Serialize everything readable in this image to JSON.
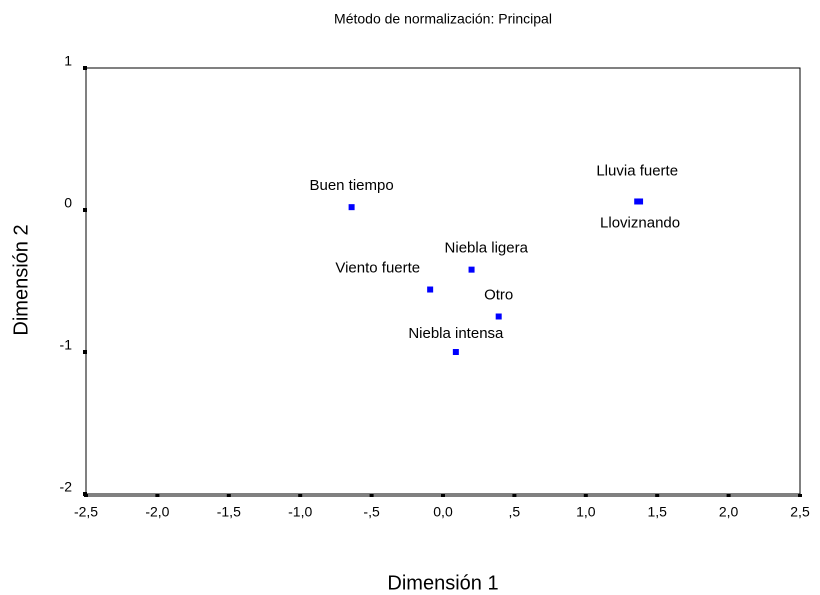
{
  "chart_data": {
    "type": "scatter",
    "title": "Método de normalización: Principal",
    "xlabel": "Dimensión 1",
    "ylabel": "Dimensión 2",
    "color": "#0000ff",
    "xlim": [
      -2.5,
      2.5
    ],
    "ylim": [
      -2,
      1
    ],
    "xticks": [
      {
        "value": -2.5,
        "label": "-2,5"
      },
      {
        "value": -2.0,
        "label": "-2,0"
      },
      {
        "value": -1.5,
        "label": "-1,5"
      },
      {
        "value": -1.0,
        "label": "-1,0"
      },
      {
        "value": -0.5,
        "label": "-,5"
      },
      {
        "value": 0.0,
        "label": "0,0"
      },
      {
        "value": 0.5,
        "label": ",5"
      },
      {
        "value": 1.0,
        "label": "1,0"
      },
      {
        "value": 1.5,
        "label": "1,5"
      },
      {
        "value": 2.0,
        "label": "2,0"
      },
      {
        "value": 2.5,
        "label": "2,5"
      }
    ],
    "yticks": [
      1,
      0,
      -1,
      -2
    ],
    "labels": [
      "Buen tiempo",
      "Lluvia fuerte",
      "Lloviznando",
      "Niebla ligera",
      "Viento fuerte",
      "Otro",
      "Niebla intensa"
    ],
    "x": [
      -0.64,
      1.36,
      1.38,
      0.2,
      -0.09,
      0.39,
      0.09
    ],
    "values": [
      0.02,
      0.06,
      0.06,
      -0.42,
      -0.56,
      -0.75,
      -1.0
    ]
  }
}
